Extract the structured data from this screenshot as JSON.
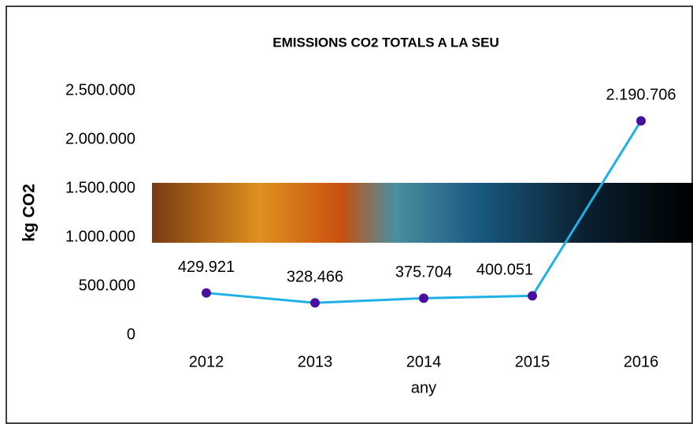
{
  "chart_data": {
    "type": "line",
    "title": "EMISSIONS  CO2 TOTALS A LA SEU",
    "xlabel": "any",
    "ylabel": "kg CO2",
    "categories": [
      "2012",
      "2013",
      "2014",
      "2015",
      "2016"
    ],
    "values": [
      429921,
      328466,
      375704,
      400051,
      2190706
    ],
    "value_labels": [
      "429.921",
      "328.466",
      "375.704",
      "400.051",
      "2.190.706"
    ],
    "color": "#1fb0e6",
    "marker_color": "#4a0f9e",
    "ylim": [
      0,
      2500000
    ],
    "yticks": [
      0,
      {
        "value": 500000,
        "label": "500.000"
      },
      {
        "value": 1000000,
        "label": "1.000.000"
      },
      {
        "value": 1500000,
        "label": "1.500.000"
      },
      {
        "value": 2000000,
        "label": "2.000.000"
      },
      {
        "value": 2500000,
        "label": "2.500.000"
      }
    ],
    "grid": false
  }
}
